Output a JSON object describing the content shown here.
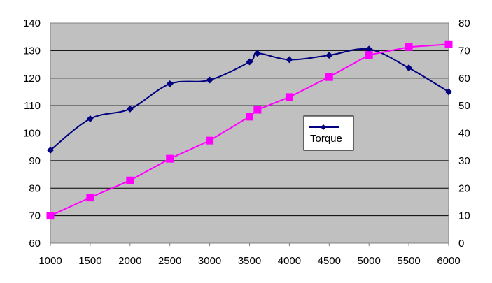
{
  "chart_data": {
    "type": "line",
    "title": "",
    "x": [
      1000,
      1500,
      2000,
      2500,
      3000,
      3500,
      3600,
      4000,
      4500,
      5000,
      5500,
      6000
    ],
    "x_ticks": [
      "1000",
      "1500",
      "2000",
      "2500",
      "3000",
      "3500",
      "4000",
      "4500",
      "5000",
      "5500",
      "6000"
    ],
    "y_left_ticks": [
      "60",
      "70",
      "80",
      "90",
      "100",
      "110",
      "120",
      "130",
      "140"
    ],
    "y_right_ticks": [
      "0",
      "10",
      "20",
      "30",
      "40",
      "50",
      "60",
      "70",
      "80"
    ],
    "y_left_lim": [
      60,
      140
    ],
    "y_right_lim": [
      0,
      80
    ],
    "grid": "horizontal",
    "plot_background": "#C0C0C0",
    "legend": {
      "placement": "center-right",
      "entries": [
        "Torque"
      ]
    },
    "series": [
      {
        "name": "Torque",
        "axis": "left",
        "color": "#000080",
        "marker": "diamond",
        "values": [
          93.8,
          105.2,
          108.8,
          117.9,
          119.3,
          125.9,
          129.0,
          126.7,
          128.3,
          130.5,
          123.7,
          115.0
        ]
      },
      {
        "axis": "right",
        "color": "#FF00FF",
        "marker": "square",
        "values": [
          10.0,
          16.6,
          22.8,
          30.7,
          37.3,
          46.0,
          48.5,
          53.1,
          60.4,
          68.4,
          71.3,
          72.3
        ]
      }
    ]
  }
}
